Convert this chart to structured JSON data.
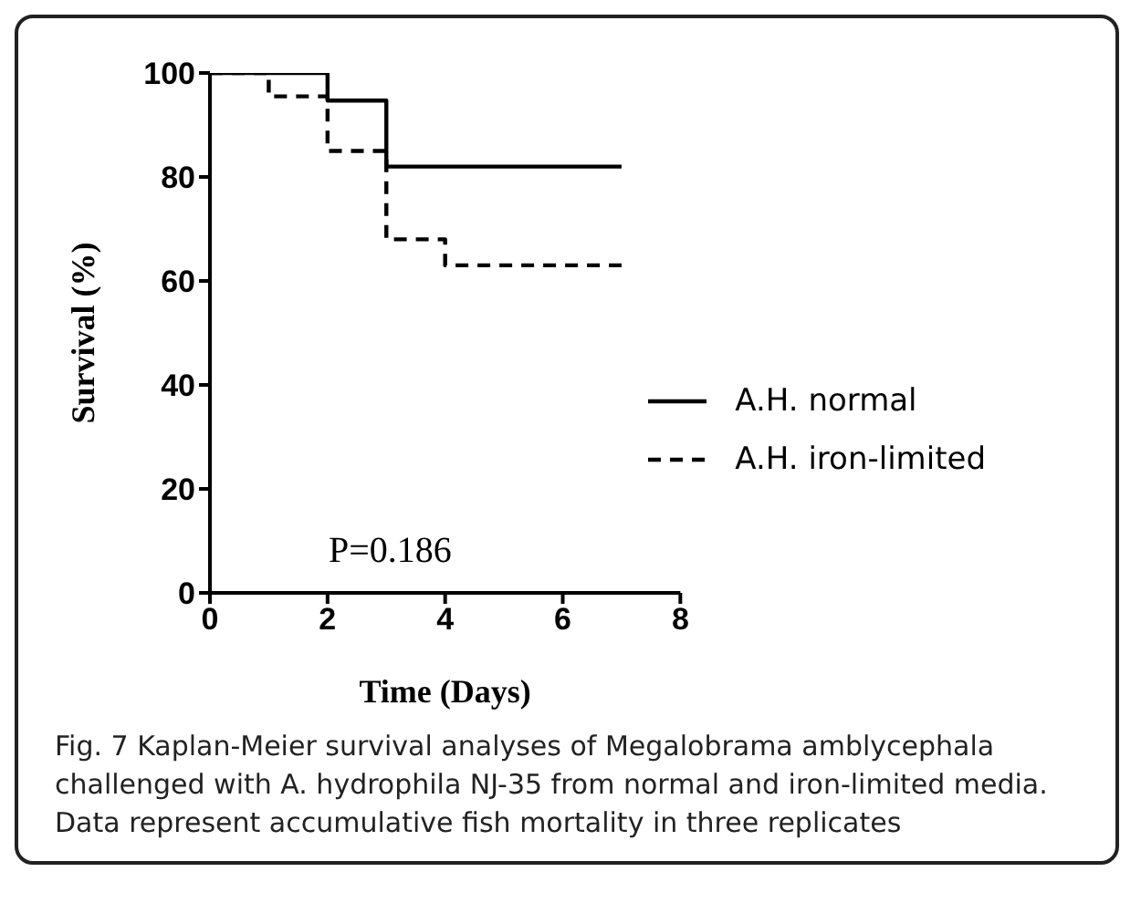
{
  "chart_data": {
    "type": "step",
    "xlabel": "Time (Days)",
    "ylabel": "Survival (%)",
    "series": [
      {
        "name": "A.H. normal",
        "color": "#000000",
        "line_style": "solid",
        "x": [
          0,
          2,
          3,
          7
        ],
        "values": [
          100,
          94.7,
          82,
          82
        ]
      },
      {
        "name": "A.H. iron-limited",
        "color": "#000000",
        "line_style": "dashed",
        "x": [
          0,
          1,
          2,
          3,
          4,
          7
        ],
        "values": [
          100,
          95.5,
          85,
          68,
          63,
          63
        ]
      }
    ],
    "xlim": [
      0,
      8
    ],
    "xticks": [
      0,
      2,
      4,
      6,
      8
    ],
    "ylim": [
      0,
      100
    ],
    "yticks": [
      0,
      20,
      40,
      60,
      80,
      100
    ],
    "legend": "right",
    "grid": false,
    "annotations": [
      "P=0.186",
      "Fig. 7 Kaplan-Meier survival analyses of Megalobrama amblycephala challenged with A. hydrophila NJ-35 from normal and iron-limited media. Data represent accumulative fish mortality in three replicates"
    ]
  }
}
